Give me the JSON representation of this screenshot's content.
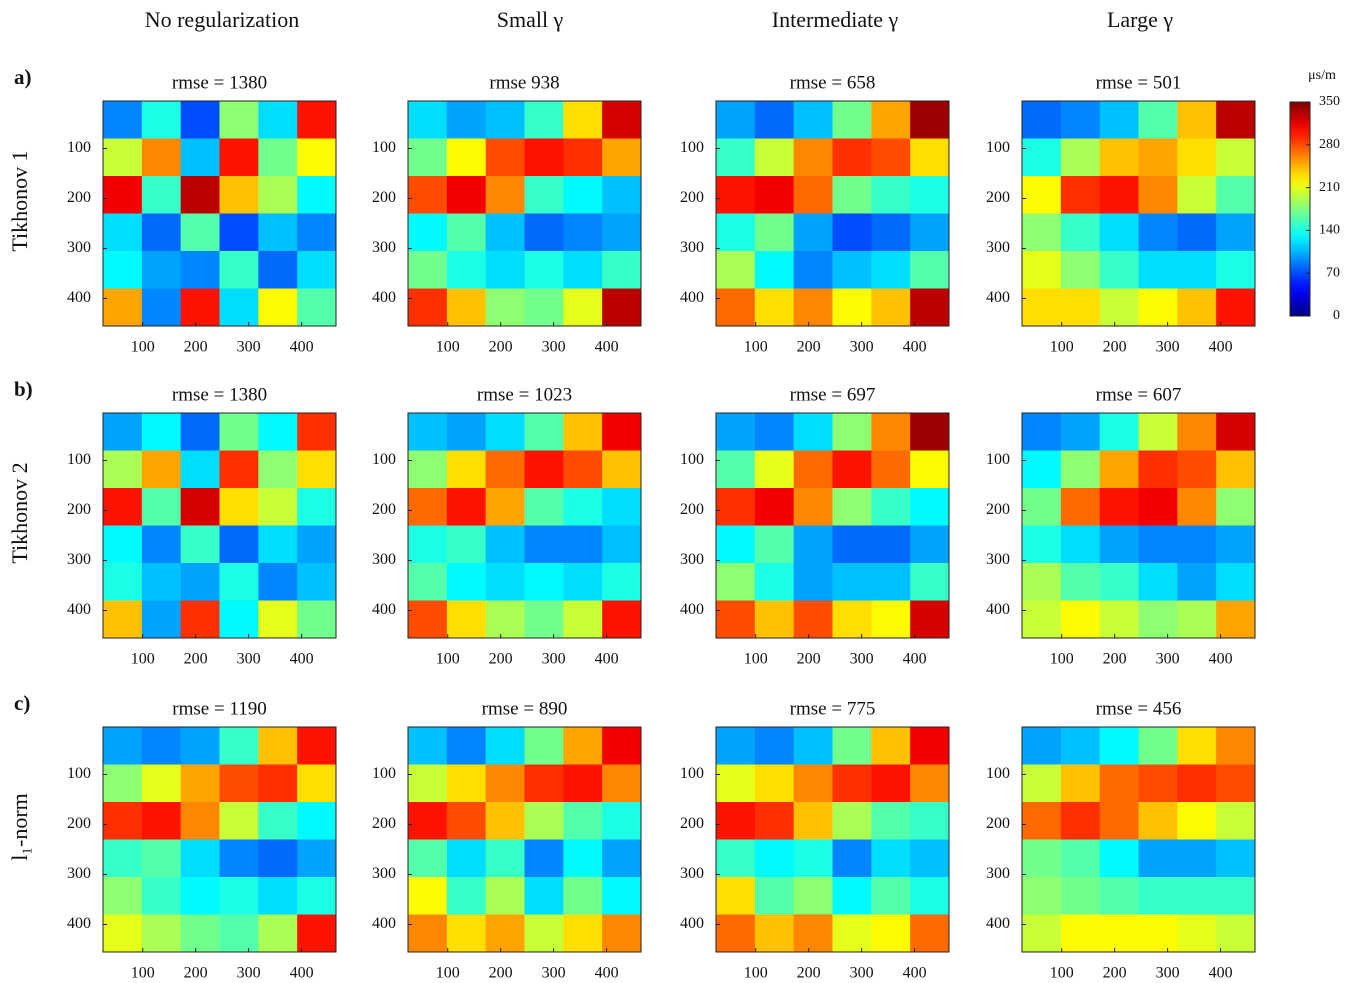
{
  "column_titles": [
    "No regularization",
    "Small γ",
    "Intermediate γ",
    "Large γ"
  ],
  "row_letters": [
    "a)",
    "b)",
    "c)"
  ],
  "row_labels": [
    "Tikhonov 1",
    "Tikhonov 2",
    "l₁-norm"
  ],
  "colorbar": {
    "label": "μs/m",
    "zlim": [
      0,
      350
    ],
    "ticks": [
      0,
      70,
      140,
      210,
      280,
      350
    ],
    "colormap": "jet"
  },
  "chart_data": [
    {
      "type": "heatmap",
      "title": "rmse = 1380",
      "xlim": [
        25,
        465
      ],
      "ylim": [
        5,
        455
      ],
      "y_inverted": true,
      "xticks": [
        100,
        200,
        300,
        400
      ],
      "yticks": [
        100,
        200,
        300,
        400
      ],
      "z": [
        [
          90,
          140,
          70,
          180,
          120,
          300
        ],
        [
          200,
          260,
          110,
          300,
          170,
          220
        ],
        [
          310,
          150,
          330,
          240,
          190,
          130
        ],
        [
          120,
          80,
          160,
          70,
          110,
          90
        ],
        [
          130,
          100,
          90,
          150,
          80,
          120
        ],
        [
          250,
          90,
          300,
          120,
          220,
          160
        ]
      ]
    },
    {
      "type": "heatmap",
      "title": "rmse 938",
      "xlim": [
        25,
        465
      ],
      "ylim": [
        5,
        455
      ],
      "y_inverted": true,
      "xticks": [
        100,
        200,
        300,
        400
      ],
      "yticks": [
        100,
        200,
        300,
        400
      ],
      "z": [
        [
          120,
          100,
          110,
          150,
          230,
          320
        ],
        [
          170,
          220,
          280,
          300,
          290,
          250
        ],
        [
          280,
          310,
          260,
          150,
          130,
          110
        ],
        [
          130,
          160,
          110,
          80,
          90,
          100
        ],
        [
          170,
          140,
          120,
          140,
          120,
          150
        ],
        [
          290,
          240,
          180,
          170,
          210,
          330
        ]
      ]
    },
    {
      "type": "heatmap",
      "title": "rmse = 658",
      "xlim": [
        25,
        465
      ],
      "ylim": [
        5,
        455
      ],
      "y_inverted": true,
      "xticks": [
        100,
        200,
        300,
        400
      ],
      "yticks": [
        100,
        200,
        300,
        400
      ],
      "z": [
        [
          100,
          80,
          110,
          170,
          250,
          340
        ],
        [
          150,
          200,
          260,
          290,
          280,
          230
        ],
        [
          300,
          310,
          270,
          170,
          150,
          140
        ],
        [
          140,
          170,
          100,
          70,
          80,
          100
        ],
        [
          190,
          130,
          90,
          110,
          120,
          160
        ],
        [
          270,
          230,
          260,
          220,
          240,
          330
        ]
      ]
    },
    {
      "type": "heatmap",
      "title": "rmse = 501",
      "xlim": [
        25,
        465
      ],
      "ylim": [
        5,
        455
      ],
      "y_inverted": true,
      "xticks": [
        100,
        200,
        300,
        400
      ],
      "yticks": [
        100,
        200,
        300,
        400
      ],
      "z": [
        [
          80,
          90,
          110,
          160,
          240,
          330
        ],
        [
          140,
          190,
          240,
          250,
          230,
          200
        ],
        [
          220,
          290,
          300,
          260,
          200,
          160
        ],
        [
          180,
          150,
          120,
          90,
          80,
          100
        ],
        [
          210,
          180,
          150,
          120,
          120,
          140
        ],
        [
          230,
          230,
          200,
          220,
          240,
          300
        ]
      ]
    },
    {
      "type": "heatmap",
      "title": "rmse = 1380",
      "xlim": [
        25,
        465
      ],
      "ylim": [
        5,
        455
      ],
      "y_inverted": true,
      "xticks": [
        100,
        200,
        300,
        400
      ],
      "yticks": [
        100,
        200,
        300,
        400
      ],
      "z": [
        [
          100,
          130,
          80,
          170,
          130,
          290
        ],
        [
          190,
          250,
          120,
          290,
          180,
          230
        ],
        [
          300,
          160,
          320,
          230,
          200,
          140
        ],
        [
          130,
          90,
          150,
          80,
          120,
          100
        ],
        [
          140,
          110,
          100,
          140,
          90,
          110
        ],
        [
          240,
          100,
          290,
          130,
          210,
          170
        ]
      ]
    },
    {
      "type": "heatmap",
      "title": "rmse = 1023",
      "xlim": [
        25,
        465
      ],
      "ylim": [
        5,
        455
      ],
      "y_inverted": true,
      "xticks": [
        100,
        200,
        300,
        400
      ],
      "yticks": [
        100,
        200,
        300,
        400
      ],
      "z": [
        [
          110,
          100,
          120,
          160,
          240,
          310
        ],
        [
          180,
          230,
          270,
          300,
          280,
          240
        ],
        [
          270,
          300,
          250,
          160,
          140,
          120
        ],
        [
          140,
          150,
          110,
          90,
          90,
          110
        ],
        [
          160,
          130,
          120,
          130,
          120,
          140
        ],
        [
          280,
          230,
          190,
          170,
          200,
          300
        ]
      ]
    },
    {
      "type": "heatmap",
      "title": "rmse = 697",
      "xlim": [
        25,
        465
      ],
      "ylim": [
        5,
        455
      ],
      "y_inverted": true,
      "xticks": [
        100,
        200,
        300,
        400
      ],
      "yticks": [
        100,
        200,
        300,
        400
      ],
      "z": [
        [
          100,
          90,
          120,
          180,
          260,
          340
        ],
        [
          160,
          210,
          270,
          300,
          270,
          220
        ],
        [
          290,
          310,
          260,
          180,
          150,
          130
        ],
        [
          130,
          160,
          100,
          80,
          80,
          100
        ],
        [
          180,
          140,
          100,
          110,
          110,
          150
        ],
        [
          280,
          240,
          280,
          230,
          220,
          320
        ]
      ]
    },
    {
      "type": "heatmap",
      "title": "rmse = 607",
      "xlim": [
        25,
        465
      ],
      "ylim": [
        5,
        455
      ],
      "y_inverted": true,
      "xticks": [
        100,
        200,
        300,
        400
      ],
      "yticks": [
        100,
        200,
        300,
        400
      ],
      "z": [
        [
          90,
          100,
          140,
          200,
          260,
          320
        ],
        [
          130,
          180,
          250,
          290,
          280,
          240
        ],
        [
          170,
          270,
          300,
          310,
          260,
          180
        ],
        [
          140,
          120,
          100,
          90,
          90,
          100
        ],
        [
          190,
          160,
          150,
          120,
          100,
          120
        ],
        [
          200,
          220,
          200,
          180,
          190,
          250
        ]
      ]
    },
    {
      "type": "heatmap",
      "title": "rmse = 1190",
      "xlim": [
        25,
        465
      ],
      "ylim": [
        5,
        455
      ],
      "y_inverted": true,
      "xticks": [
        100,
        200,
        300,
        400
      ],
      "yticks": [
        100,
        200,
        300,
        400
      ],
      "z": [
        [
          100,
          90,
          100,
          150,
          240,
          300
        ],
        [
          180,
          210,
          250,
          280,
          290,
          230
        ],
        [
          290,
          300,
          260,
          200,
          150,
          130
        ],
        [
          150,
          160,
          120,
          90,
          80,
          100
        ],
        [
          180,
          150,
          130,
          140,
          120,
          140
        ],
        [
          210,
          190,
          170,
          160,
          190,
          300
        ]
      ]
    },
    {
      "type": "heatmap",
      "title": "rmse = 890",
      "xlim": [
        25,
        465
      ],
      "ylim": [
        5,
        455
      ],
      "y_inverted": true,
      "xticks": [
        100,
        200,
        300,
        400
      ],
      "yticks": [
        100,
        200,
        300,
        400
      ],
      "z": [
        [
          110,
          90,
          120,
          170,
          250,
          310
        ],
        [
          200,
          230,
          260,
          290,
          300,
          260
        ],
        [
          300,
          280,
          240,
          190,
          160,
          140
        ],
        [
          160,
          120,
          150,
          90,
          130,
          100
        ],
        [
          220,
          150,
          190,
          120,
          170,
          130
        ],
        [
          260,
          230,
          250,
          200,
          230,
          260
        ]
      ]
    },
    {
      "type": "heatmap",
      "title": "rmse = 775",
      "xlim": [
        25,
        465
      ],
      "ylim": [
        5,
        455
      ],
      "y_inverted": true,
      "xticks": [
        100,
        200,
        300,
        400
      ],
      "yticks": [
        100,
        200,
        300,
        400
      ],
      "z": [
        [
          100,
          90,
          110,
          170,
          240,
          310
        ],
        [
          210,
          230,
          260,
          290,
          300,
          260
        ],
        [
          300,
          290,
          240,
          190,
          160,
          150
        ],
        [
          150,
          130,
          140,
          90,
          120,
          110
        ],
        [
          230,
          160,
          180,
          130,
          160,
          140
        ],
        [
          270,
          240,
          260,
          210,
          220,
          270
        ]
      ]
    },
    {
      "type": "heatmap",
      "title": "rmse = 456",
      "xlim": [
        25,
        465
      ],
      "ylim": [
        5,
        455
      ],
      "y_inverted": true,
      "xticks": [
        100,
        200,
        300,
        400
      ],
      "yticks": [
        100,
        200,
        300,
        400
      ],
      "z": [
        [
          100,
          110,
          130,
          170,
          230,
          260
        ],
        [
          200,
          240,
          270,
          280,
          290,
          280
        ],
        [
          270,
          290,
          270,
          240,
          220,
          200
        ],
        [
          170,
          160,
          130,
          100,
          100,
          110
        ],
        [
          180,
          170,
          160,
          150,
          150,
          150
        ],
        [
          200,
          220,
          220,
          220,
          210,
          200
        ]
      ]
    }
  ]
}
